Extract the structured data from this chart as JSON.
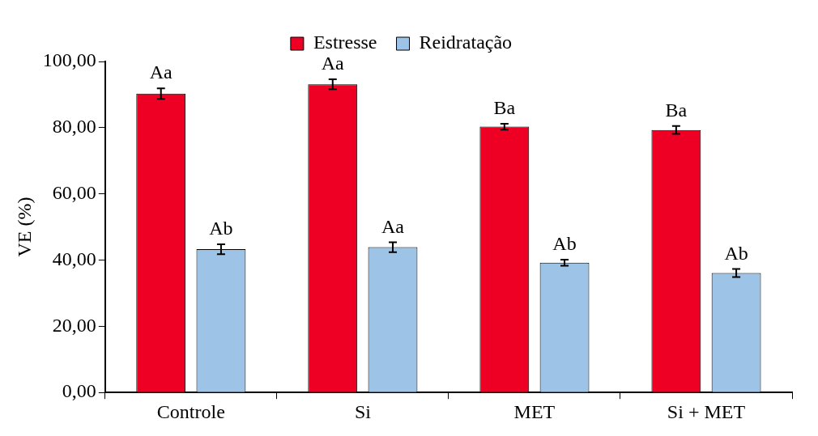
{
  "chart_data": {
    "type": "bar",
    "ylabel": "VE (%)",
    "categories": [
      "Controle",
      "Si",
      "MET",
      "Si + MET"
    ],
    "series": [
      {
        "name": "Estresse",
        "color": "#ee0024",
        "values": [
          90.3,
          93.1,
          80.3,
          79.3
        ],
        "errors": [
          1.6,
          1.5,
          0.9,
          1.2
        ],
        "value_labels": [
          "Aa",
          "Aa",
          "Ba",
          "Ba"
        ]
      },
      {
        "name": "Reidratação",
        "color": "#9dc3e6",
        "values": [
          43.3,
          43.9,
          39.2,
          36.1
        ],
        "errors": [
          1.5,
          1.5,
          0.9,
          1.2
        ],
        "value_labels": [
          "Ab",
          "Aa",
          "Ab",
          "Ab"
        ]
      }
    ],
    "ylim": [
      0,
      100
    ],
    "yticks": [
      {
        "value": 0,
        "label": "0,00"
      },
      {
        "value": 20,
        "label": "20,00"
      },
      {
        "value": 40,
        "label": "40,00"
      },
      {
        "value": 60,
        "label": "60,00"
      },
      {
        "value": 80,
        "label": "80,00"
      },
      {
        "value": 100,
        "label": "100,00"
      }
    ],
    "grid": false,
    "legend": "top"
  }
}
